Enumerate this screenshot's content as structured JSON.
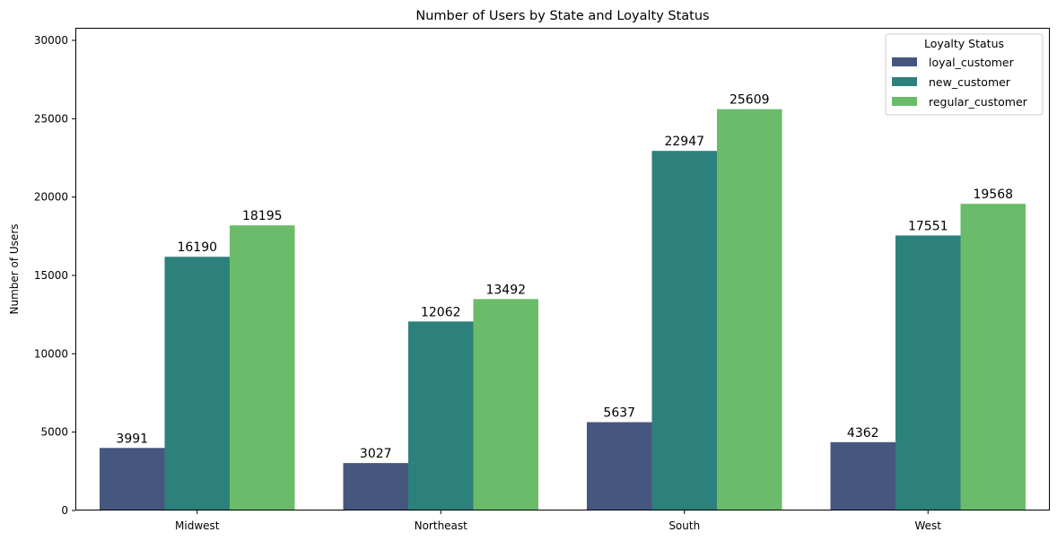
{
  "chart_data": {
    "type": "bar",
    "title": "Number of Users by State and Loyalty Status",
    "xlabel": "",
    "ylabel": "Number of Users",
    "categories": [
      "Midwest",
      "Northeast",
      "South",
      "West"
    ],
    "series": [
      {
        "name": "loyal_customer",
        "color": "#45577f",
        "values": [
          3991,
          3027,
          5637,
          4362
        ]
      },
      {
        "name": "new_customer",
        "color": "#2d817c",
        "values": [
          16190,
          12062,
          22947,
          17551
        ]
      },
      {
        "name": "regular_customer",
        "color": "#6abc6a",
        "values": [
          18195,
          13492,
          25609,
          19568
        ]
      }
    ],
    "ylim": [
      0,
      30800
    ],
    "yticks": [
      0,
      5000,
      10000,
      15000,
      20000,
      25000,
      30000
    ],
    "legend": {
      "title": "Loyalty Status",
      "placement": "top-right"
    },
    "grid": false
  }
}
